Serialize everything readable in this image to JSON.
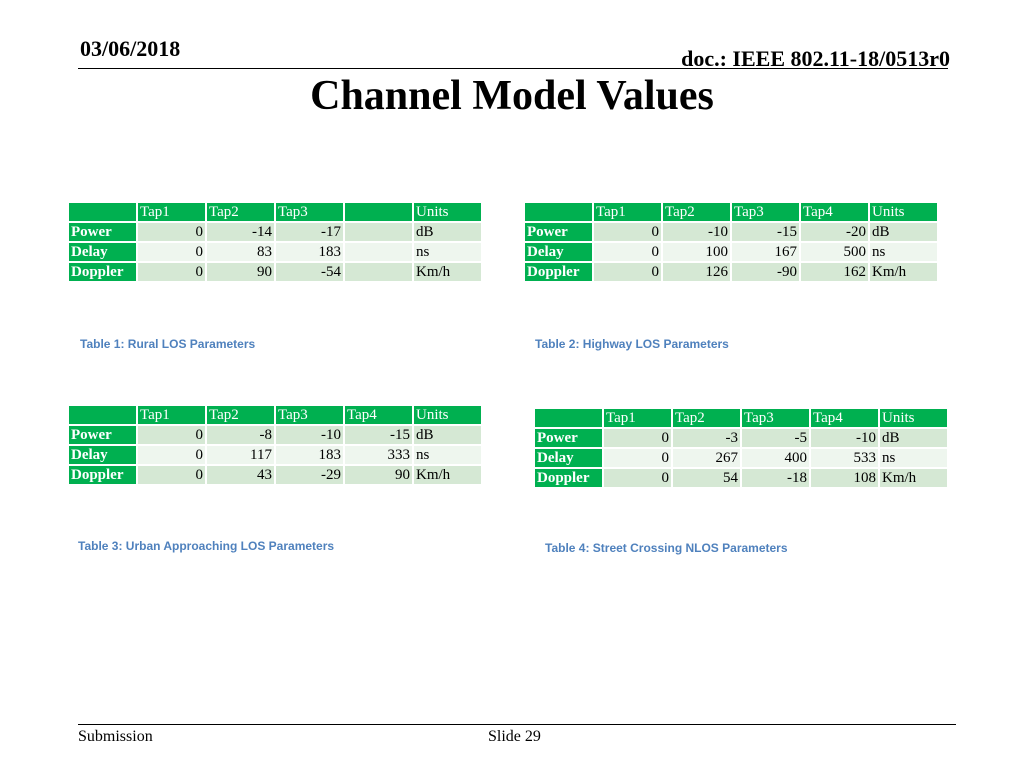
{
  "header": {
    "date": "03/06/2018",
    "doc": "doc.: IEEE 802.11-18/0513r0"
  },
  "title": "Channel Model Values",
  "tables": [
    {
      "caption": "Table 1: Rural LOS Parameters",
      "head": [
        "",
        "Tap1",
        "Tap2",
        "Tap3",
        "",
        "Units"
      ],
      "rows": [
        [
          "Power",
          "0",
          "-14",
          "-17",
          "",
          "dB"
        ],
        [
          "Delay",
          "0",
          "83",
          "183",
          "",
          "ns"
        ],
        [
          "Doppler",
          "0",
          "90",
          "-54",
          "",
          "Km/h"
        ]
      ]
    },
    {
      "caption": "Table 2: Highway LOS Parameters",
      "head": [
        "",
        "Tap1",
        "Tap2",
        "Tap3",
        "Tap4",
        "Units"
      ],
      "rows": [
        [
          "Power",
          "0",
          "-10",
          "-15",
          "-20",
          "dB"
        ],
        [
          "Delay",
          "0",
          "100",
          "167",
          "500",
          "ns"
        ],
        [
          "Doppler",
          "0",
          "126",
          "-90",
          "162",
          "Km/h"
        ]
      ]
    },
    {
      "caption": "Table 3: Urban Approaching LOS Parameters",
      "head": [
        "",
        "Tap1",
        "Tap2",
        "Tap3",
        "Tap4",
        "Units"
      ],
      "rows": [
        [
          "Power",
          "0",
          "-8",
          "-10",
          "-15",
          "dB"
        ],
        [
          "Delay",
          "0",
          "117",
          "183",
          "333",
          "ns"
        ],
        [
          "Doppler",
          "0",
          "43",
          "-29",
          "90",
          "Km/h"
        ]
      ]
    },
    {
      "caption": "Table 4: Street Crossing NLOS Parameters",
      "head": [
        "",
        "Tap1",
        "Tap2",
        "Tap3",
        "Tap4",
        "Units"
      ],
      "rows": [
        [
          "Power",
          "0",
          "-3",
          "-5",
          "-10",
          "dB"
        ],
        [
          "Delay",
          "0",
          "267",
          "400",
          "533",
          "ns"
        ],
        [
          "Doppler",
          "0",
          "54",
          "-18",
          "108",
          "Km/h"
        ]
      ]
    }
  ],
  "footer": {
    "left": "Submission",
    "center": "Slide 29"
  }
}
